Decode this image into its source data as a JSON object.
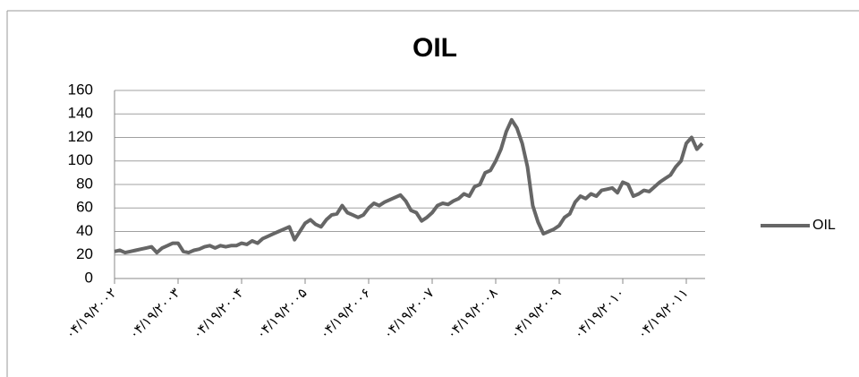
{
  "chart_data": {
    "type": "line",
    "title": "OIL",
    "categories": [
      "۰۴/۱۹/۲۰۰۲",
      null,
      null,
      null,
      null,
      null,
      null,
      null,
      null,
      null,
      null,
      null,
      "۰۴/۱۹/۲۰۰۳",
      null,
      null,
      null,
      null,
      null,
      null,
      null,
      null,
      null,
      null,
      null,
      "۰۴/۱۹/۲۰۰۴",
      null,
      null,
      null,
      null,
      null,
      null,
      null,
      null,
      null,
      null,
      null,
      "۰۴/۱۹/۲۰۰۵",
      null,
      null,
      null,
      null,
      null,
      null,
      null,
      null,
      null,
      null,
      null,
      "۰۴/۱۹/۲۰۰۶",
      null,
      null,
      null,
      null,
      null,
      null,
      null,
      null,
      null,
      null,
      null,
      "۰۴/۱۹/۲۰۰۷",
      null,
      null,
      null,
      null,
      null,
      null,
      null,
      null,
      null,
      null,
      null,
      "۰۴/۱۹/۲۰۰۸",
      null,
      null,
      null,
      null,
      null,
      null,
      null,
      null,
      null,
      null,
      null,
      "۰۴/۱۹/۲۰۰۹",
      null,
      null,
      null,
      null,
      null,
      null,
      null,
      null,
      null,
      null,
      null,
      "۰۴/۱۹/۲۰۱۰",
      null,
      null,
      null,
      null,
      null,
      null,
      null,
      null,
      null,
      null,
      null,
      "۰۴/۱۹/۲۰۱۱",
      null,
      null,
      null
    ],
    "series": [
      {
        "name": "OIL",
        "color": "#666666",
        "values": [
          23,
          24,
          22,
          23,
          24,
          25,
          26,
          27,
          22,
          26,
          28,
          30,
          30,
          23,
          22,
          24,
          25,
          27,
          28,
          26,
          28,
          27,
          28,
          28,
          30,
          29,
          32,
          30,
          34,
          36,
          38,
          40,
          42,
          44,
          33,
          40,
          47,
          50,
          46,
          44,
          50,
          54,
          55,
          62,
          56,
          54,
          52,
          54,
          60,
          64,
          62,
          65,
          67,
          69,
          71,
          66,
          58,
          56,
          49,
          52,
          56,
          62,
          64,
          63,
          66,
          68,
          72,
          70,
          78,
          80,
          90,
          92,
          100,
          110,
          125,
          135,
          128,
          115,
          95,
          62,
          48,
          38,
          40,
          42,
          45,
          52,
          55,
          65,
          70,
          68,
          72,
          70,
          75,
          76,
          77,
          73,
          82,
          80,
          70,
          72,
          75,
          74,
          78,
          82,
          85,
          88,
          95,
          100,
          115,
          120,
          110,
          115
        ]
      }
    ],
    "ylim": [
      0,
      160
    ],
    "yticks": [
      0,
      20,
      40,
      60,
      80,
      100,
      120,
      140,
      160
    ],
    "grid": true,
    "legend": "right"
  }
}
